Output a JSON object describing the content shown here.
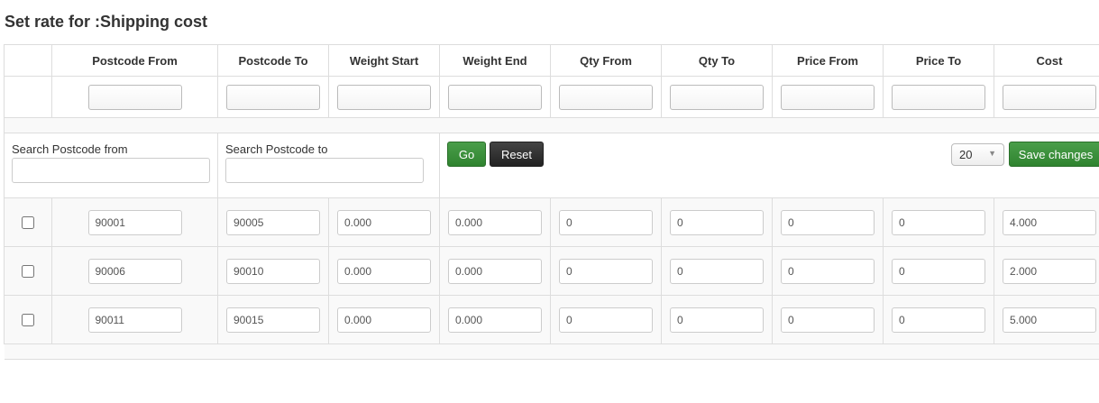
{
  "title": "Set rate for :Shipping cost",
  "columns": [
    "Postcode From",
    "Postcode To",
    "Weight Start",
    "Weight End",
    "Qty From",
    "Qty To",
    "Price From",
    "Price To",
    "Cost"
  ],
  "search": {
    "from_label": "Search Postcode from",
    "to_label": "Search Postcode to",
    "from_value": "",
    "to_value": ""
  },
  "buttons": {
    "go": "Go",
    "reset": "Reset",
    "save": "Save changes"
  },
  "page_size": "20",
  "colors": {
    "green": "#3a8f3a",
    "dark": "#2b2b2b"
  },
  "rows": [
    {
      "checked": false,
      "values": [
        "90001",
        "90005",
        "0.000",
        "0.000",
        "0",
        "0",
        "0",
        "0",
        "4.000"
      ]
    },
    {
      "checked": false,
      "values": [
        "90006",
        "90010",
        "0.000",
        "0.000",
        "0",
        "0",
        "0",
        "0",
        "2.000"
      ]
    },
    {
      "checked": false,
      "values": [
        "90011",
        "90015",
        "0.000",
        "0.000",
        "0",
        "0",
        "0",
        "0",
        "5.000"
      ]
    }
  ]
}
